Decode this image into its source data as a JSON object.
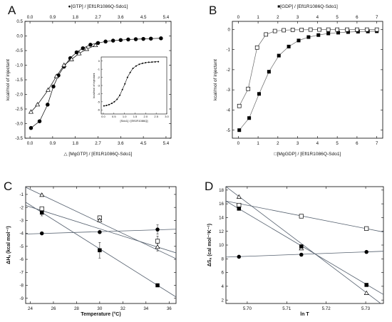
{
  "chart_data": [
    {
      "id": "A",
      "panel_label": "A",
      "type": "scatter",
      "top_axis_label": "●[GTP] / [Efl1R1086Q-Sdo1]",
      "bottom_axis_label": "△ [MgGTP] / [Efl1R1086Q-Sdo1]",
      "ylabel": "kcal/mol of injectant",
      "xlim": [
        -0.2,
        5.6
      ],
      "ylim": [
        -3.5,
        0.5
      ],
      "xticks": [
        0.0,
        0.9,
        1.8,
        2.7,
        3.6,
        4.5,
        5.4
      ],
      "xtick_labels": [
        "0.0",
        "0.9",
        "1.8",
        "2.7",
        "3.6",
        "4.5",
        "5.4"
      ],
      "top_xtick_labels": [
        "0.0",
        "0.9",
        "1.8",
        "2.7",
        "3.6",
        "4.5",
        "5.4"
      ],
      "yticks": [
        0.5,
        0.0,
        -0.5,
        -1.0,
        -1.5,
        -2.0,
        -2.5,
        -3.0,
        -3.5
      ],
      "ytick_labels": [
        "0.5",
        "0.0",
        "-0.5",
        "-1.0",
        "-1.5",
        "-2.0",
        "-2.5",
        "-3.0",
        "-3.5"
      ],
      "series": [
        {
          "marker": "filled-circle",
          "x": [
            0.04,
            0.38,
            0.7,
            0.93,
            1.13,
            1.35,
            1.6,
            1.85,
            2.1,
            2.4,
            2.7,
            3.0,
            3.3,
            3.6,
            3.9,
            4.2,
            4.5,
            4.8,
            5.2
          ],
          "y": [
            -3.15,
            -2.92,
            -2.35,
            -1.73,
            -1.35,
            -1.05,
            -0.76,
            -0.56,
            -0.42,
            -0.3,
            -0.24,
            -0.19,
            -0.16,
            -0.14,
            -0.12,
            -0.11,
            -0.1,
            -0.09,
            -0.08
          ]
        },
        {
          "marker": "open-triangle",
          "x": [
            0.04,
            0.3,
            0.72,
            1.05,
            1.35,
            1.65,
            1.95,
            2.25,
            2.6
          ],
          "y": [
            -2.6,
            -2.35,
            -1.85,
            -1.38,
            -1.0,
            -0.8,
            -0.6,
            -0.45,
            -0.32
          ]
        }
      ],
      "inset": {
        "type": "line",
        "xlabel": "[Sdo1] / [Efl1R1086Q]",
        "ylabel": "kcal/mol of injectant",
        "xlim": [
          -0.1,
          3.0
        ],
        "ylim": [
          -6.5,
          0.5
        ],
        "xticks": [
          0.0,
          0.5,
          1.0,
          1.5,
          2.0,
          2.5,
          3.0
        ],
        "xtick_labels": [
          "0.0",
          "0.5",
          "1.0",
          "1.5",
          "2.0",
          "2.5",
          "3.0"
        ],
        "yticks": [
          0,
          -1,
          -2,
          -3,
          -4,
          -5,
          -6
        ],
        "ytick_labels": [
          "0",
          "-1",
          "-2",
          "-3",
          "-4",
          "-5",
          "-6"
        ],
        "x": [
          0.03,
          0.15,
          0.27,
          0.4,
          0.52,
          0.65,
          0.78,
          0.9,
          1.02,
          1.14,
          1.27,
          1.4,
          1.55,
          1.7,
          1.85,
          2.0,
          2.15,
          2.3,
          2.45,
          2.6
        ],
        "y": [
          -5.5,
          -5.45,
          -5.35,
          -5.2,
          -5.0,
          -4.7,
          -4.2,
          -3.5,
          -2.8,
          -2.0,
          -1.4,
          -0.9,
          -0.6,
          -0.4,
          -0.28,
          -0.2,
          -0.15,
          -0.12,
          -0.1,
          -0.08
        ]
      }
    },
    {
      "id": "B",
      "panel_label": "B",
      "type": "line",
      "top_axis_label": "■[GDP] / [Efl1R1086Q-Sdo1]",
      "bottom_axis_label": "□[MgGDP] / [Efl1R1086Q-Sdo1]",
      "ylabel": "kcal/mol of injectant",
      "xlim": [
        -0.3,
        7.3
      ],
      "ylim": [
        -5.4,
        0.4
      ],
      "xticks": [
        0,
        1,
        2,
        3,
        4,
        5,
        6,
        7
      ],
      "xtick_labels": [
        "0",
        "1",
        "2",
        "3",
        "4",
        "5",
        "6",
        "7"
      ],
      "top_xtick_labels": [
        "0",
        "1",
        "2",
        "3",
        "4",
        "5",
        "6",
        "7"
      ],
      "yticks": [
        0,
        -1,
        -2,
        -3,
        -4,
        -5
      ],
      "ytick_labels": [
        "0",
        "-1",
        "-2",
        "-3",
        "-4",
        "-5"
      ],
      "series": [
        {
          "marker": "filled-square",
          "x": [
            0.05,
            0.55,
            1.05,
            1.55,
            2.05,
            2.55,
            3.05,
            3.55,
            4.05,
            4.55,
            5.05,
            5.55,
            6.05,
            6.55,
            7.0
          ],
          "y": [
            -5.0,
            -4.4,
            -3.2,
            -2.1,
            -1.3,
            -0.85,
            -0.55,
            -0.38,
            -0.28,
            -0.2,
            -0.16,
            -0.13,
            -0.11,
            -0.1,
            -0.09
          ]
        },
        {
          "marker": "open-square",
          "x": [
            0.05,
            0.5,
            0.95,
            1.4,
            1.85,
            2.3,
            2.75,
            3.2,
            3.65,
            4.1,
            4.55,
            5.0,
            5.5,
            6.0,
            6.5,
            7.0
          ],
          "y": [
            -3.8,
            -2.95,
            -0.9,
            -0.25,
            -0.08,
            -0.04,
            -0.02,
            -0.02,
            -0.01,
            -0.01,
            -0.01,
            -0.01,
            -0.01,
            -0.01,
            -0.01,
            -0.01
          ]
        }
      ]
    },
    {
      "id": "C",
      "panel_label": "C",
      "type": "scatter",
      "xlabel": "Temperature (°C)",
      "ylabel": "ΔHₐ (kcal mol⁻¹)",
      "xlim": [
        23.6,
        36.6
      ],
      "ylim": [
        -9.4,
        -0.4
      ],
      "xticks": [
        24,
        26,
        28,
        30,
        32,
        34,
        36
      ],
      "xtick_labels": [
        "24",
        "26",
        "28",
        "30",
        "32",
        "34",
        "36"
      ],
      "yticks": [
        -1,
        -2,
        -3,
        -4,
        -5,
        -6,
        -7,
        -8,
        -9
      ],
      "ytick_labels": [
        "-1",
        "-2",
        "-3",
        "-4",
        "-5",
        "-6",
        "-7",
        "-8",
        "-9"
      ],
      "series": [
        {
          "marker": "filled-square",
          "x": [
            25,
            30,
            35
          ],
          "y": [
            -2.4,
            -5.3,
            -8.0
          ],
          "err": [
            0.25,
            0.6,
            0.05
          ],
          "fit": [
            [
              23.6,
              -1.6
            ],
            [
              36.6,
              -8.9
            ]
          ]
        },
        {
          "marker": "open-square",
          "x": [
            25,
            30,
            35
          ],
          "y": [
            -2.1,
            -2.8,
            -4.6
          ],
          "err": [
            0.1,
            0.15,
            0.4
          ],
          "fit": [
            [
              23.6,
              -1.85
            ],
            [
              36.6,
              -5.5
            ]
          ]
        },
        {
          "marker": "open-triangle",
          "x": [
            25,
            30,
            35
          ],
          "y": [
            -1.05,
            -3.0,
            -5.05
          ],
          "err": [
            0.1,
            0.1,
            0.3
          ],
          "fit": [
            [
              23.6,
              -0.45
            ],
            [
              36.6,
              -5.95
            ]
          ]
        },
        {
          "marker": "filled-circle",
          "x": [
            25,
            30,
            35
          ],
          "y": [
            -4.0,
            -3.9,
            -3.7
          ],
          "err": [
            0.1,
            0.05,
            0.35
          ],
          "fit": [
            [
              23.6,
              -4.05
            ],
            [
              36.6,
              -3.68
            ]
          ]
        }
      ]
    },
    {
      "id": "D",
      "panel_label": "D",
      "type": "scatter",
      "xlabel": "ln T",
      "ylabel": "ΔSₐ (cal mol⁻¹K⁻¹)",
      "xlim": [
        5.6946,
        5.7345
      ],
      "ylim": [
        1.5,
        18.5
      ],
      "xticks": [
        5.7,
        5.71,
        5.72,
        5.73
      ],
      "xtick_labels": [
        "5.70",
        "5.71",
        "5.72",
        "5.73"
      ],
      "yticks": [
        2,
        4,
        6,
        8,
        10,
        12,
        14,
        16,
        18
      ],
      "ytick_labels": [
        "2",
        "4",
        "6",
        "8",
        "10",
        "12",
        "14",
        "16",
        "18"
      ],
      "series": [
        {
          "marker": "open-triangle",
          "x": [
            5.6979,
            5.7137,
            5.7302
          ],
          "y": [
            17.0,
            9.5,
            3.0
          ],
          "fit": [
            [
              5.6946,
              18.5
            ],
            [
              5.7345,
              1.2
            ]
          ]
        },
        {
          "marker": "open-square",
          "x": [
            5.6979,
            5.7137,
            5.7302
          ],
          "y": [
            15.8,
            14.2,
            12.4
          ],
          "fit": [
            [
              5.6946,
              16.4
            ],
            [
              5.7345,
              11.9
            ]
          ]
        },
        {
          "marker": "filled-square",
          "x": [
            5.6979,
            5.7137,
            5.7302
          ],
          "y": [
            15.3,
            9.8,
            4.2
          ],
          "fit": [
            [
              5.6946,
              16.4
            ],
            [
              5.7345,
              2.8
            ]
          ]
        },
        {
          "marker": "filled-circle",
          "x": [
            5.6979,
            5.7137,
            5.7302
          ],
          "y": [
            8.3,
            8.6,
            9.0
          ],
          "fit": [
            [
              5.6946,
              8.25
            ],
            [
              5.7345,
              9.1
            ]
          ]
        }
      ]
    }
  ]
}
